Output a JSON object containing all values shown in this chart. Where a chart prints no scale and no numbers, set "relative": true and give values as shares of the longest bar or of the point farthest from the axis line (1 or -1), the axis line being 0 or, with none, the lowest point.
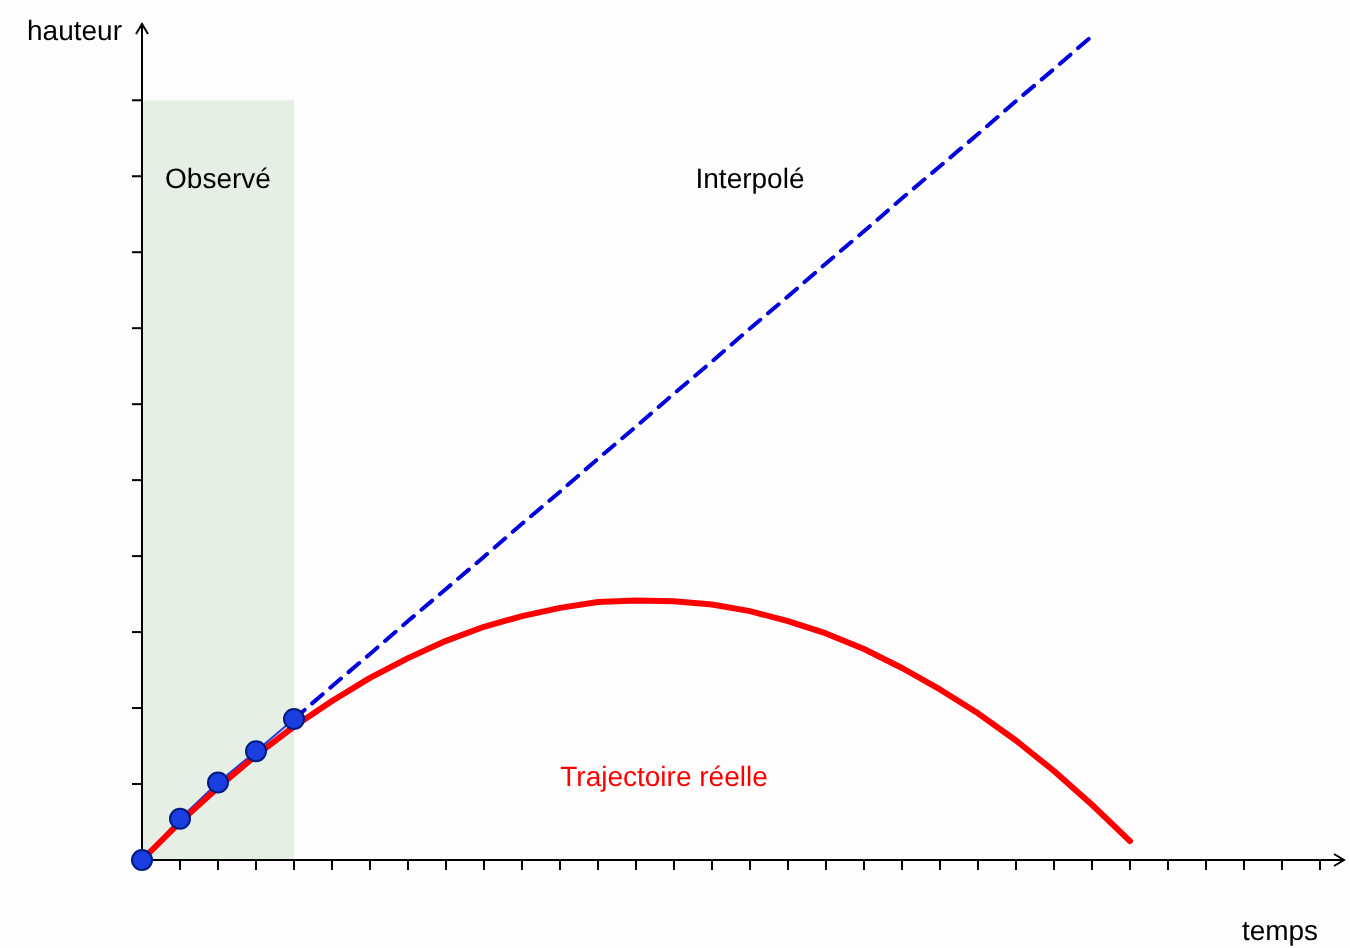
{
  "chart_data": {
    "type": "line",
    "relative": true,
    "xlabel": "temps",
    "ylabel": "hauteur",
    "categories": [
      null,
      null,
      null,
      null,
      null,
      null,
      null,
      null,
      null,
      null,
      null,
      null,
      null,
      null,
      null,
      null,
      null,
      null,
      null,
      null,
      null,
      null,
      null,
      null,
      null,
      null,
      null,
      null,
      null,
      null,
      null,
      null
    ],
    "annotations": [
      "Observé",
      "Interpolé"
    ],
    "series": [
      {
        "color": "#1a3fe0",
        "marker": "circle",
        "values": [
          0,
          0.05,
          0.094,
          0.132,
          0.171,
          null,
          null,
          null,
          null,
          null,
          null,
          null,
          null,
          null,
          null,
          null,
          null,
          null,
          null,
          null,
          null,
          null,
          null,
          null,
          null,
          null,
          null,
          null,
          null,
          null,
          null,
          null
        ]
      },
      {
        "name": "Trajectoire réelle",
        "color": "#ff0000",
        "line_style": "solid",
        "values": [
          0,
          0.046,
          0.088,
          0.127,
          0.162,
          0.193,
          0.221,
          0.245,
          0.266,
          0.283,
          0.296,
          0.306,
          0.313,
          0.315,
          0.314,
          0.31,
          0.302,
          0.29,
          0.275,
          0.256,
          0.233,
          0.207,
          0.178,
          0.145,
          0.108,
          0.067,
          0.023,
          null,
          null,
          null,
          null,
          null
        ]
      },
      {
        "color": "#0000dd",
        "line_style": "dashed",
        "values": [
          null,
          null,
          null,
          null,
          0.171,
          0.211,
          0.25,
          0.29,
          0.329,
          0.368,
          0.408,
          0.447,
          0.487,
          0.526,
          0.566,
          0.605,
          0.645,
          0.684,
          0.724,
          0.763,
          0.803,
          0.842,
          0.881,
          0.921,
          0.96,
          1,
          null,
          null,
          null,
          null,
          null,
          null
        ]
      }
    ]
  }
}
